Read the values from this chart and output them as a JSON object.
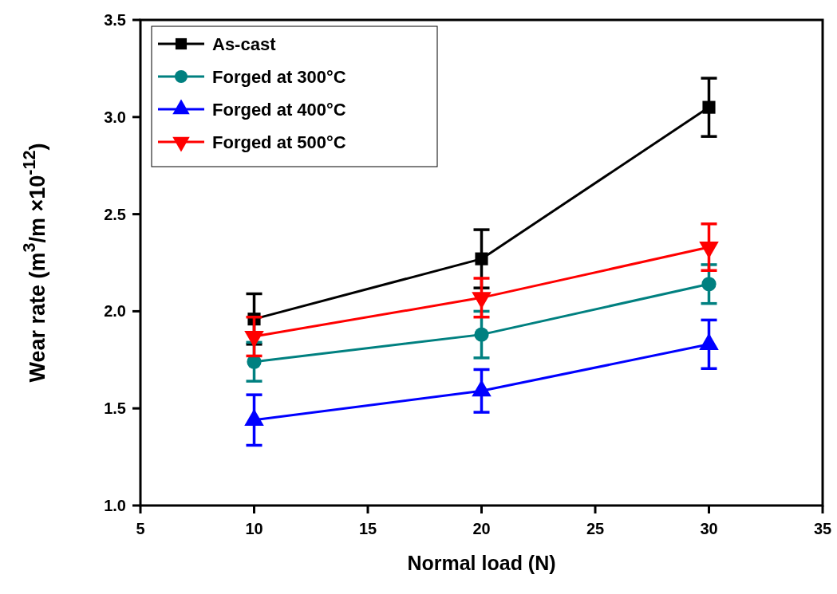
{
  "chart_data": {
    "type": "line",
    "xlabel": "Normal load (N)",
    "ylabel": "Wear rate (m$^{3}$/m ×10$^{-12}$)",
    "x": [
      10,
      20,
      30
    ],
    "xlim": [
      5,
      35
    ],
    "xticks": [
      5,
      10,
      15,
      20,
      25,
      30,
      35
    ],
    "ylim": [
      1.0,
      3.5
    ],
    "yticks": [
      {
        "value": 1.0,
        "label": "1.0"
      },
      {
        "value": 1.5,
        "label": "1.5"
      },
      {
        "value": 2.0,
        "label": "2.0"
      },
      {
        "value": 2.5,
        "label": "2.5"
      },
      {
        "value": 3.0,
        "label": "3.0"
      },
      {
        "value": 3.5,
        "label": "3.5"
      }
    ],
    "grid": false,
    "legend": "top left",
    "line_style": "solid",
    "series": [
      {
        "name": "As-cast",
        "color": "#000000",
        "marker": "square",
        "values": [
          1.96,
          2.27,
          3.05
        ],
        "errors": [
          0.13,
          0.15,
          0.15
        ]
      },
      {
        "name": "Forged at 300°C",
        "color": "#008080",
        "marker": "circle",
        "values": [
          1.74,
          1.88,
          2.14
        ],
        "errors": [
          0.1,
          0.12,
          0.1
        ]
      },
      {
        "name": "Forged at 400°C",
        "color": "#0000ff",
        "marker": "triangle",
        "values": [
          1.44,
          1.59,
          1.83
        ],
        "errors": [
          0.13,
          0.11,
          0.125
        ]
      },
      {
        "name": "Forged at 500°C",
        "color": "#ff0000",
        "marker": "triangle-down",
        "values": [
          1.87,
          2.07,
          2.33
        ],
        "errors": [
          0.1,
          0.1,
          0.12
        ]
      }
    ]
  }
}
